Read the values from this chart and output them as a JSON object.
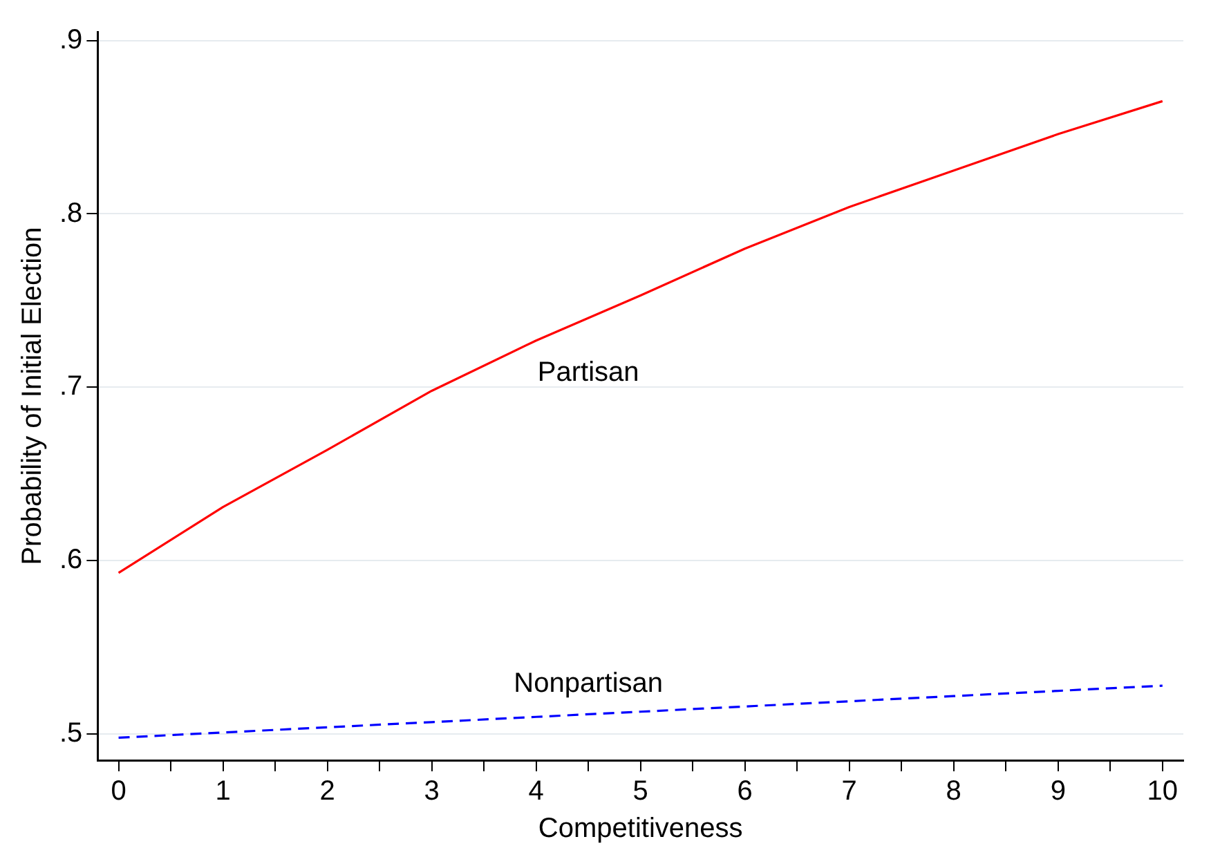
{
  "chart_data": {
    "type": "line",
    "xlabel": "Competitiveness",
    "ylabel": "Probability of Initial Election",
    "xlim": [
      -0.2,
      10.2
    ],
    "ylim": [
      0.485,
      0.905
    ],
    "xticks": [
      0,
      {
        "value": 0.5,
        "label": null
      },
      1,
      {
        "value": 1.5,
        "label": null
      },
      2,
      {
        "value": 2.5,
        "label": null
      },
      3,
      {
        "value": 3.5,
        "label": null
      },
      4,
      {
        "value": 4.5,
        "label": null
      },
      5,
      {
        "value": 5.5,
        "label": null
      },
      6,
      {
        "value": 6.5,
        "label": null
      },
      7,
      {
        "value": 7.5,
        "label": null
      },
      8,
      {
        "value": 8.5,
        "label": null
      },
      9,
      {
        "value": 9.5,
        "label": null
      },
      10
    ],
    "yticks": [
      {
        "value": 0.5,
        "label": ".5"
      },
      {
        "value": 0.6,
        "label": ".6"
      },
      {
        "value": 0.7,
        "label": ".7"
      },
      {
        "value": 0.8,
        "label": ".8"
      },
      {
        "value": 0.9,
        "label": ".9"
      }
    ],
    "grid": "y",
    "legend": false,
    "marker": "none",
    "x": [
      0,
      1,
      2,
      3,
      4,
      5,
      6,
      7,
      8,
      9,
      10
    ],
    "series": [
      {
        "name": "Partisan",
        "color": "#ff0000",
        "line_style": "solid",
        "values": [
          0.593,
          0.631,
          0.664,
          0.698,
          0.727,
          0.753,
          0.78,
          0.804,
          0.825,
          0.846,
          0.865
        ]
      },
      {
        "name": "Nonpartisan",
        "color": "#0000ff",
        "line_style": "dashed",
        "values": [
          0.498,
          0.501,
          0.504,
          0.507,
          0.51,
          0.513,
          0.516,
          0.519,
          0.522,
          0.525,
          0.528
        ]
      }
    ]
  }
}
